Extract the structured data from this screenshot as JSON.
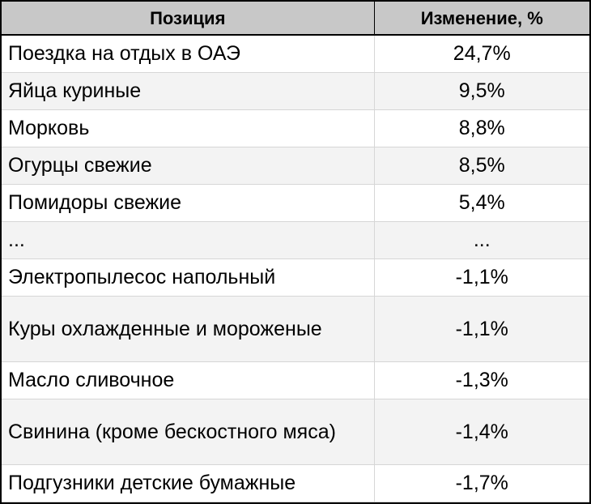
{
  "table": {
    "headers": [
      "Позиция",
      "Изменение, %"
    ],
    "rows": [
      {
        "item": "Поездка на отдых в ОАЭ",
        "change": "24,7%"
      },
      {
        "item": "Яйца куриные",
        "change": "9,5%"
      },
      {
        "item": "Морковь",
        "change": "8,8%"
      },
      {
        "item": "Огурцы свежие",
        "change": "8,5%"
      },
      {
        "item": "Помидоры свежие",
        "change": "5,4%"
      },
      {
        "item": "...",
        "change": "..."
      },
      {
        "item": "Электропылесос напольный",
        "change": "-1,1%"
      },
      {
        "item": "Куры охлажденные и мороженые",
        "change": "-1,1%"
      },
      {
        "item": "Масло сливочное",
        "change": "-1,3%"
      },
      {
        "item": "Свинина (кроме бескостного мяса)",
        "change": "-1,4%"
      },
      {
        "item": "Подгузники детские бумажные",
        "change": "-1,7%"
      }
    ]
  },
  "colors": {
    "header_bg": "#c8c8c8",
    "stripe_bg": "#f3f3f3",
    "border": "#000000"
  }
}
